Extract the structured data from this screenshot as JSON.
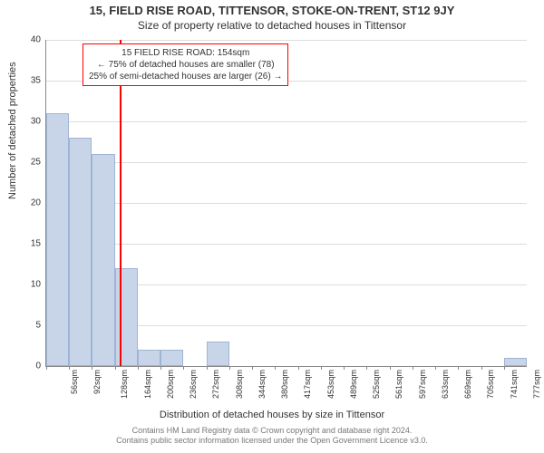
{
  "title_main": "15, FIELD RISE ROAD, TITTENSOR, STOKE-ON-TRENT, ST12 9JY",
  "title_sub": "Size of property relative to detached houses in Tittensor",
  "ylabel": "Number of detached properties",
  "xlabel": "Distribution of detached houses by size in Tittensor",
  "footer_line1": "Contains HM Land Registry data © Crown copyright and database right 2024.",
  "footer_line2": "Contains public sector information licensed under the Open Government Licence v3.0.",
  "chart": {
    "type": "histogram",
    "ylim": [
      0,
      40
    ],
    "ytick_step": 5,
    "bar_color": "#c8d5e8",
    "bar_border": "#9fb4d4",
    "grid_color": "#dddddd",
    "axis_color": "#888888",
    "background": "#ffffff",
    "marker_color": "#ff0000",
    "marker_value": 154,
    "x_start": 38,
    "bin_width": 36,
    "bins": [
      {
        "label": "56sqm",
        "value": 31
      },
      {
        "label": "92sqm",
        "value": 28
      },
      {
        "label": "128sqm",
        "value": 26
      },
      {
        "label": "164sqm",
        "value": 12
      },
      {
        "label": "200sqm",
        "value": 2
      },
      {
        "label": "236sqm",
        "value": 2
      },
      {
        "label": "272sqm",
        "value": 0
      },
      {
        "label": "308sqm",
        "value": 3
      },
      {
        "label": "344sqm",
        "value": 0
      },
      {
        "label": "380sqm",
        "value": 0
      },
      {
        "label": "417sqm",
        "value": 0
      },
      {
        "label": "453sqm",
        "value": 0
      },
      {
        "label": "489sqm",
        "value": 0
      },
      {
        "label": "525sqm",
        "value": 0
      },
      {
        "label": "561sqm",
        "value": 0
      },
      {
        "label": "597sqm",
        "value": 0
      },
      {
        "label": "633sqm",
        "value": 0
      },
      {
        "label": "669sqm",
        "value": 0
      },
      {
        "label": "705sqm",
        "value": 0
      },
      {
        "label": "741sqm",
        "value": 0
      },
      {
        "label": "777sqm",
        "value": 1
      }
    ]
  },
  "info_box": {
    "line1": "15 FIELD RISE ROAD: 154sqm",
    "line2": "← 75% of detached houses are smaller (78)",
    "line3": "25% of semi-detached houses are larger (26) →"
  }
}
